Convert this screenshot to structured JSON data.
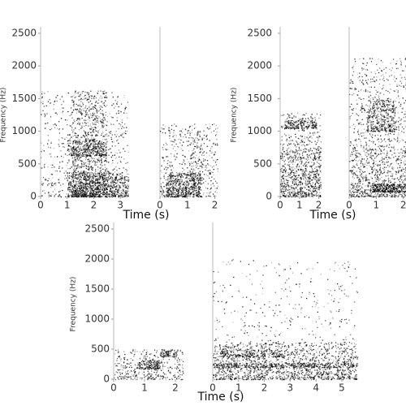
{
  "chart_data": [
    {
      "type": "spectrogram",
      "ylabel": "Frequency (Hz)",
      "xlabel": "Time (s)",
      "ylim": [
        0,
        2500
      ],
      "yticks": [
        0,
        500,
        1000,
        1500,
        2000,
        2500
      ],
      "panels": [
        {
          "xlim": [
            0,
            3.3
          ],
          "xticks": [
            0,
            1,
            2,
            3
          ]
        },
        {
          "xlim": [
            0,
            2.1
          ],
          "xticks": [
            0,
            1,
            2
          ]
        }
      ]
    },
    {
      "type": "spectrogram",
      "ylabel": "Frequency (Hz)",
      "xlabel": "Time (s)",
      "ylim": [
        0,
        2500
      ],
      "yticks": [
        0,
        500,
        1000,
        1500,
        2000,
        2500
      ],
      "panels": [
        {
          "xlim": [
            0,
            2.1
          ],
          "xticks": [
            0,
            1,
            2
          ]
        },
        {
          "xlim": [
            0,
            2.1
          ],
          "xticks": [
            0,
            1,
            2
          ]
        }
      ]
    },
    {
      "type": "spectrogram",
      "ylabel": "Frequency (Hz)",
      "xlabel": "Time (s)",
      "ylim": [
        0,
        2500
      ],
      "yticks": [
        0,
        500,
        1000,
        1500,
        2000,
        2500
      ],
      "panels": [
        {
          "xlim": [
            0,
            2.5
          ],
          "xticks": [
            0,
            1,
            2
          ]
        },
        {
          "xlim": [
            0,
            5.6
          ],
          "xticks": [
            0,
            1,
            2,
            3,
            4,
            5
          ]
        }
      ]
    }
  ]
}
